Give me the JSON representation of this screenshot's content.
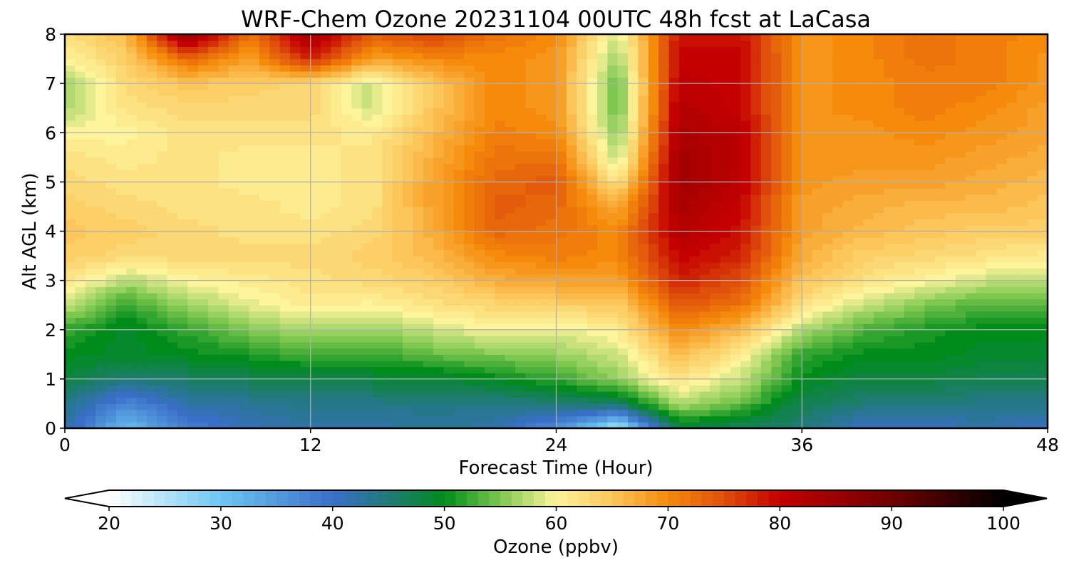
{
  "chart_data": {
    "type": "heatmap",
    "subtype": "filled-contour time-height cross section",
    "title": "WRF-Chem Ozone  20231104 00UTC 48h fcst at LaCasa",
    "xlabel": "Forecast Time (Hour)",
    "ylabel": "Alt AGL (km)",
    "xlim": [
      0,
      48
    ],
    "ylim": [
      0,
      8
    ],
    "x_ticks": [
      0,
      12,
      24,
      36,
      48
    ],
    "y_ticks": [
      0,
      1,
      2,
      3,
      4,
      5,
      6,
      7,
      8
    ],
    "grid": true,
    "x": [
      0,
      3,
      6,
      9,
      12,
      15,
      18,
      21,
      24,
      27,
      30,
      33,
      36,
      39,
      42,
      45,
      48
    ],
    "y": [
      0,
      0.5,
      1,
      1.5,
      2,
      2.5,
      3,
      3.5,
      4,
      4.5,
      5,
      5.5,
      6,
      6.5,
      7,
      7.5,
      8
    ],
    "z_unit": "ppbv",
    "z": [
      [
        42,
        31,
        38,
        41,
        42,
        42,
        43,
        42,
        36,
        25,
        48,
        46,
        45,
        40,
        40,
        42,
        40
      ],
      [
        44,
        37,
        42,
        43,
        44,
        44,
        44,
        44,
        45,
        46,
        57,
        54,
        47,
        45,
        45,
        44,
        44
      ],
      [
        48,
        45,
        46,
        47,
        47,
        48,
        48,
        50,
        52,
        56,
        62,
        58,
        50,
        48,
        48,
        47,
        47
      ],
      [
        50,
        49,
        50,
        51,
        53,
        52,
        54,
        55,
        56,
        58,
        66,
        61,
        52,
        50,
        50,
        49,
        49
      ],
      [
        52,
        49,
        52,
        55,
        57,
        56,
        58,
        60,
        59,
        61,
        70,
        66,
        57,
        53,
        51,
        50,
        50
      ],
      [
        58,
        52,
        56,
        59,
        61,
        60,
        62,
        63,
        64,
        64,
        74,
        72,
        62,
        58,
        55,
        53,
        53
      ],
      [
        62,
        57,
        60,
        61,
        62,
        63,
        64,
        67,
        68,
        68,
        78,
        75,
        65,
        62,
        60,
        58,
        57
      ],
      [
        64,
        63,
        63,
        63,
        63,
        64,
        66,
        70,
        71,
        70,
        80,
        78,
        67,
        64,
        63,
        62,
        61
      ],
      [
        65,
        64,
        63,
        62,
        62,
        63,
        67,
        73,
        72,
        70,
        82,
        79,
        68,
        66,
        65,
        64,
        64
      ],
      [
        64,
        63,
        62,
        62,
        61,
        62,
        68,
        74,
        73,
        67,
        83,
        80,
        68,
        67,
        66,
        66,
        65
      ],
      [
        63,
        62,
        62,
        61,
        61,
        62,
        68,
        73,
        74,
        62,
        84,
        81,
        69,
        68,
        68,
        67,
        66
      ],
      [
        62,
        61,
        62,
        61,
        61,
        62,
        67,
        72,
        72,
        57,
        84,
        81,
        69,
        69,
        69,
        68,
        67
      ],
      [
        60,
        60,
        62,
        62,
        62,
        61,
        66,
        71,
        70,
        55,
        83,
        81,
        69,
        69,
        70,
        69,
        68
      ],
      [
        57,
        62,
        63,
        63,
        63,
        58,
        65,
        70,
        69,
        54,
        82,
        80,
        69,
        70,
        71,
        70,
        68
      ],
      [
        56,
        63,
        65,
        64,
        63,
        58,
        65,
        70,
        69,
        54,
        81,
        80,
        69,
        70,
        71,
        71,
        69
      ],
      [
        60,
        64,
        73,
        68,
        78,
        68,
        70,
        70,
        69,
        56,
        80,
        80,
        69,
        70,
        72,
        71,
        69
      ],
      [
        62,
        66,
        86,
        72,
        84,
        74,
        76,
        72,
        70,
        58,
        79,
        79,
        69,
        70,
        72,
        71,
        70
      ]
    ],
    "colorbar": {
      "label": "Ozone  (ppbv)",
      "min": 20,
      "max": 100,
      "ticks": [
        20,
        30,
        40,
        50,
        60,
        70,
        80,
        90,
        100
      ],
      "extend": "both",
      "placement": "bottom, horizontal",
      "stops": [
        [
          20,
          "#ffffff"
        ],
        [
          30,
          "#6cc6f2"
        ],
        [
          40,
          "#3a6fc8"
        ],
        [
          45,
          "#207a78"
        ],
        [
          50,
          "#008c1a"
        ],
        [
          55,
          "#7ec850"
        ],
        [
          60,
          "#fdf49c"
        ],
        [
          65,
          "#fcc65a"
        ],
        [
          70,
          "#f58a0b"
        ],
        [
          75,
          "#e0500b"
        ],
        [
          80,
          "#c40000"
        ],
        [
          90,
          "#700000"
        ],
        [
          100,
          "#000000"
        ]
      ]
    }
  }
}
